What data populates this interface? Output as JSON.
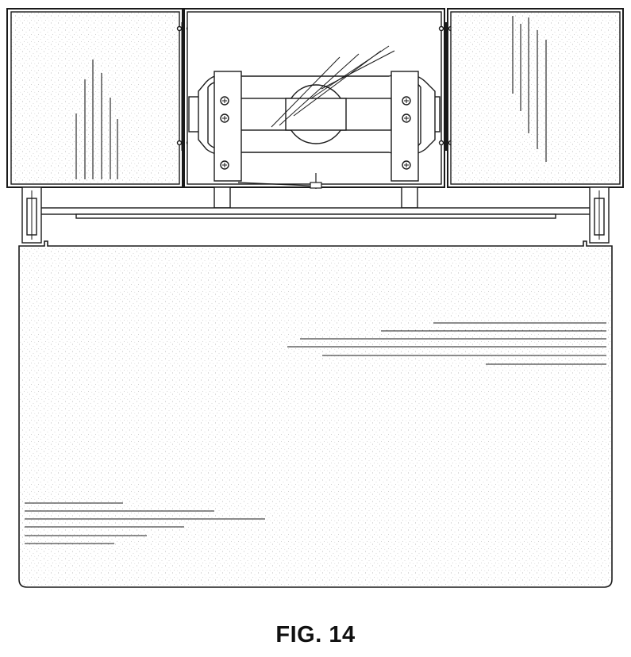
{
  "figure": {
    "caption": "FIG. 14"
  },
  "colors": {
    "line": "#1a1a1a",
    "paper": "#ffffff",
    "stipple": "#9a9a9a"
  }
}
